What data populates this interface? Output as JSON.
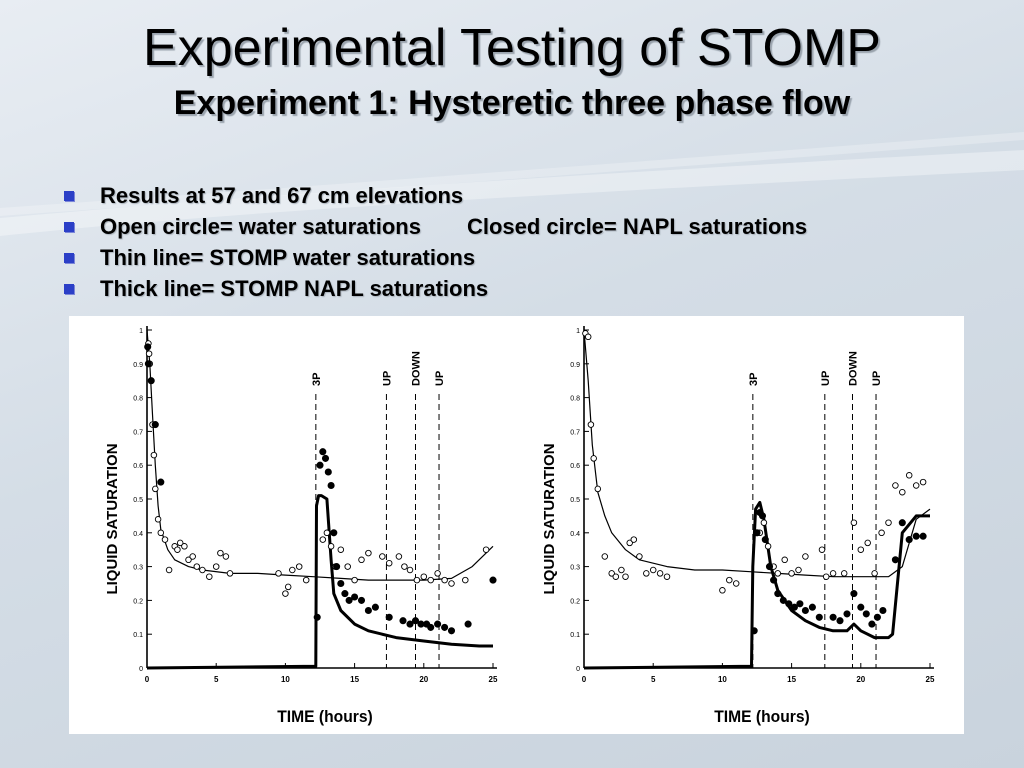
{
  "slide": {
    "title": "Experimental Testing of STOMP",
    "subtitle": "Experiment 1: Hysteretic three phase flow",
    "bullets": [
      "Results at 57 and 67 cm elevations",
      "Open circle= water saturations",
      "Closed circle= NAPL saturations",
      "Thin line= STOMP water saturations",
      "Thick line= STOMP NAPL saturations"
    ]
  },
  "colors": {
    "bullet": "#2b3fc7",
    "background": "#d4dde6",
    "ink": "#000000"
  },
  "chart_data": [
    {
      "type": "scatter",
      "ylabel": "LIQUID SATURATION",
      "xlabel": "TIME (hours)",
      "xlim": [
        0,
        25
      ],
      "ylim": [
        0,
        1
      ],
      "xticks": [
        "0",
        "5",
        "10",
        "15",
        "20",
        "25"
      ],
      "yticks": [
        "0",
        "0.1",
        "0.2",
        "0.3",
        "0.4",
        "0.5",
        "0.6",
        "0.7",
        "0.8",
        "0.9",
        "1"
      ],
      "events": [
        {
          "label": "3P",
          "x": 12.2
        },
        {
          "label": "UP",
          "x": 17.3
        },
        {
          "label": "DOWN",
          "x": 19.4
        },
        {
          "label": "UP",
          "x": 21.1
        }
      ],
      "series": [
        {
          "style": "thin-line",
          "x": [
            0,
            0.2,
            0.4,
            0.6,
            0.8,
            1,
            1.5,
            2,
            3,
            4,
            6,
            8,
            10,
            12,
            14,
            16,
            18,
            20,
            22,
            23.5,
            25
          ],
          "y": [
            1,
            0.9,
            0.75,
            0.6,
            0.48,
            0.41,
            0.35,
            0.32,
            0.3,
            0.29,
            0.28,
            0.28,
            0.275,
            0.27,
            0.265,
            0.26,
            0.26,
            0.26,
            0.265,
            0.3,
            0.36
          ]
        },
        {
          "style": "thick-line",
          "x": [
            0,
            12.2,
            12.25,
            12.4,
            12.6,
            13,
            13.3,
            13.5,
            14,
            15,
            16,
            18,
            20,
            22,
            24,
            25
          ],
          "y": [
            0,
            0.005,
            0.48,
            0.51,
            0.51,
            0.5,
            0.32,
            0.22,
            0.17,
            0.13,
            0.11,
            0.09,
            0.08,
            0.07,
            0.065,
            0.065
          ]
        },
        {
          "style": "open-circle",
          "x": [
            0.1,
            0.15,
            0.2,
            0.3,
            0.4,
            0.5,
            0.6,
            0.8,
            1,
            1.3,
            1.6,
            2,
            2.2,
            2.4,
            2.7,
            3,
            3.3,
            3.6,
            4,
            4.5,
            5,
            5.3,
            5.7,
            6,
            9.5,
            10,
            10.2,
            10.5,
            11,
            11.5,
            12.7,
            13,
            13.3,
            13.6,
            14,
            14.5,
            15,
            15.5,
            16,
            17,
            17.5,
            18.2,
            18.6,
            19,
            19.5,
            20,
            20.5,
            21,
            21.5,
            22,
            23,
            24.5
          ],
          "y": [
            0.96,
            0.93,
            0.9,
            0.85,
            0.72,
            0.63,
            0.53,
            0.44,
            0.4,
            0.38,
            0.29,
            0.36,
            0.35,
            0.37,
            0.36,
            0.32,
            0.33,
            0.3,
            0.29,
            0.27,
            0.3,
            0.34,
            0.33,
            0.28,
            0.28,
            0.22,
            0.24,
            0.29,
            0.3,
            0.26,
            0.38,
            0.4,
            0.36,
            0.3,
            0.35,
            0.3,
            0.26,
            0.32,
            0.34,
            0.33,
            0.31,
            0.33,
            0.3,
            0.29,
            0.26,
            0.27,
            0.26,
            0.28,
            0.26,
            0.25,
            0.26,
            0.35
          ]
        },
        {
          "style": "closed-circle",
          "x": [
            0.05,
            0.1,
            0.3,
            0.6,
            1,
            12.3,
            12.5,
            12.7,
            12.9,
            13.1,
            13.3,
            13.5,
            13.7,
            14,
            14.3,
            14.6,
            15,
            15.5,
            16,
            16.5,
            17.5,
            18.5,
            19,
            19.4,
            19.8,
            20.2,
            20.5,
            21,
            21.5,
            22,
            23.2,
            25
          ],
          "y": [
            0.95,
            0.9,
            0.85,
            0.72,
            0.55,
            0.15,
            0.6,
            0.64,
            0.62,
            0.58,
            0.54,
            0.4,
            0.3,
            0.25,
            0.22,
            0.2,
            0.21,
            0.2,
            0.17,
            0.18,
            0.15,
            0.14,
            0.13,
            0.14,
            0.13,
            0.13,
            0.12,
            0.13,
            0.12,
            0.11,
            0.13,
            0.26
          ]
        }
      ]
    },
    {
      "type": "scatter",
      "ylabel": "LIQUID SATURATION",
      "xlabel": "TIME (hours)",
      "xlim": [
        0,
        25
      ],
      "ylim": [
        0,
        1
      ],
      "xticks": [
        "0",
        "5",
        "10",
        "15",
        "20",
        "25"
      ],
      "yticks": [
        "0",
        "0.1",
        "0.2",
        "0.3",
        "0.4",
        "0.5",
        "0.6",
        "0.7",
        "0.8",
        "0.9",
        "1"
      ],
      "events": [
        {
          "label": "3P",
          "x": 12.2
        },
        {
          "label": "UP",
          "x": 17.4
        },
        {
          "label": "DOWN",
          "x": 19.4
        },
        {
          "label": "UP",
          "x": 21.1
        }
      ],
      "series": [
        {
          "style": "thin-line",
          "x": [
            0,
            0.3,
            0.6,
            1,
            1.5,
            2,
            3,
            4,
            6,
            8,
            10,
            12,
            14,
            16,
            18,
            20,
            21,
            22,
            23,
            24,
            25
          ],
          "y": [
            1,
            0.85,
            0.66,
            0.52,
            0.45,
            0.4,
            0.35,
            0.32,
            0.3,
            0.29,
            0.29,
            0.285,
            0.28,
            0.275,
            0.27,
            0.27,
            0.27,
            0.27,
            0.3,
            0.44,
            0.47
          ]
        },
        {
          "style": "thick-line",
          "x": [
            0,
            12.1,
            12.2,
            12.4,
            12.7,
            13,
            13.5,
            14,
            15,
            16,
            17,
            18,
            19,
            19.5,
            20,
            21,
            22,
            22.3,
            23,
            24,
            25
          ],
          "y": [
            0,
            0.005,
            0.3,
            0.47,
            0.49,
            0.44,
            0.3,
            0.23,
            0.17,
            0.14,
            0.12,
            0.11,
            0.11,
            0.13,
            0.11,
            0.09,
            0.09,
            0.1,
            0.4,
            0.45,
            0.45
          ]
        },
        {
          "style": "open-circle",
          "x": [
            0.1,
            0.3,
            0.5,
            0.7,
            1,
            1.5,
            2,
            2.3,
            2.7,
            3,
            3.3,
            3.6,
            4,
            4.5,
            5,
            5.5,
            6,
            10,
            10.5,
            11,
            12.7,
            13,
            13.3,
            13.7,
            14,
            14.5,
            15,
            15.5,
            16,
            17.2,
            17.5,
            18,
            18.8,
            19.5,
            20,
            20.5,
            21,
            21.5,
            22,
            22.5,
            23,
            23.5,
            24,
            24.5
          ],
          "y": [
            0.99,
            0.98,
            0.72,
            0.62,
            0.53,
            0.33,
            0.28,
            0.27,
            0.29,
            0.27,
            0.37,
            0.38,
            0.33,
            0.28,
            0.29,
            0.28,
            0.27,
            0.23,
            0.26,
            0.25,
            0.4,
            0.43,
            0.36,
            0.3,
            0.28,
            0.32,
            0.28,
            0.29,
            0.33,
            0.35,
            0.27,
            0.28,
            0.28,
            0.43,
            0.35,
            0.37,
            0.28,
            0.4,
            0.43,
            0.54,
            0.52,
            0.57,
            0.54,
            0.55
          ]
        },
        {
          "style": "closed-circle",
          "x": [
            12.3,
            12.5,
            12.7,
            12.9,
            13.1,
            13.4,
            13.7,
            14,
            14.4,
            14.8,
            15.2,
            15.6,
            16,
            16.5,
            17,
            18,
            18.5,
            19,
            19.5,
            20,
            20.4,
            20.8,
            21.2,
            21.6,
            22.5,
            23,
            23.5,
            24,
            24.5
          ],
          "y": [
            0.11,
            0.4,
            0.46,
            0.45,
            0.38,
            0.3,
            0.26,
            0.22,
            0.2,
            0.19,
            0.18,
            0.19,
            0.17,
            0.18,
            0.15,
            0.15,
            0.14,
            0.16,
            0.22,
            0.18,
            0.16,
            0.13,
            0.15,
            0.17,
            0.32,
            0.43,
            0.38,
            0.39,
            0.39
          ]
        }
      ]
    }
  ]
}
